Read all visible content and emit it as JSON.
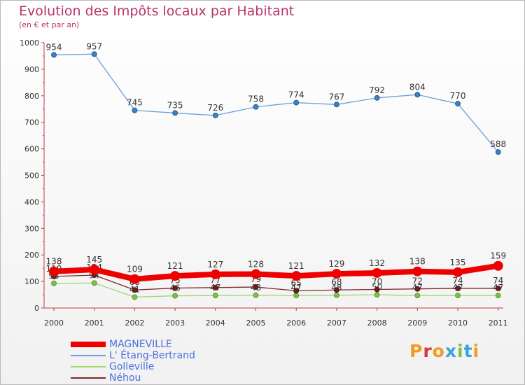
{
  "title": "Evolution des Impôts locaux par Habitant",
  "subtitle": "(en € et par an)",
  "chart_data": {
    "type": "line",
    "title": "Evolution des Impôts locaux par Habitant",
    "subtitle": "(en € et par an)",
    "x": [
      "2000",
      "2001",
      "2002",
      "2003",
      "2004",
      "2005",
      "2006",
      "2007",
      "2008",
      "2009",
      "2010",
      "2011"
    ],
    "ylim": [
      0,
      1000
    ],
    "yticks": [
      0,
      100,
      200,
      300,
      400,
      500,
      600,
      700,
      800,
      900,
      1000
    ],
    "grid": false,
    "legend_position": "bottom-left",
    "series": [
      {
        "name": "MAGNEVILLE",
        "color": "#ee0000",
        "values": [
          138,
          145,
          109,
          121,
          127,
          128,
          121,
          129,
          132,
          138,
          135,
          159
        ]
      },
      {
        "name": "L' Étang-Bertrand",
        "color": "#6aa0d8",
        "values": [
          954,
          957,
          745,
          735,
          726,
          758,
          774,
          767,
          792,
          804,
          770,
          588
        ]
      },
      {
        "name": "Golleville",
        "color": "#9fd86f",
        "values": [
          93,
          94,
          41,
          46,
          47,
          48,
          47,
          48,
          50,
          47,
          47,
          47
        ]
      },
      {
        "name": "Néhou",
        "color": "#7a2a2a",
        "values": [
          119,
          124,
          68,
          75,
          77,
          79,
          65,
          68,
          70,
          72,
          74,
          74
        ]
      }
    ]
  },
  "logo": {
    "text": "Proxiti",
    "letter_colors": [
      "#f39a1e",
      "#d93b3b",
      "#f39a1e",
      "#3aa0e0",
      "#7cc04a",
      "#3aa0e0",
      "#f39a1e"
    ]
  }
}
